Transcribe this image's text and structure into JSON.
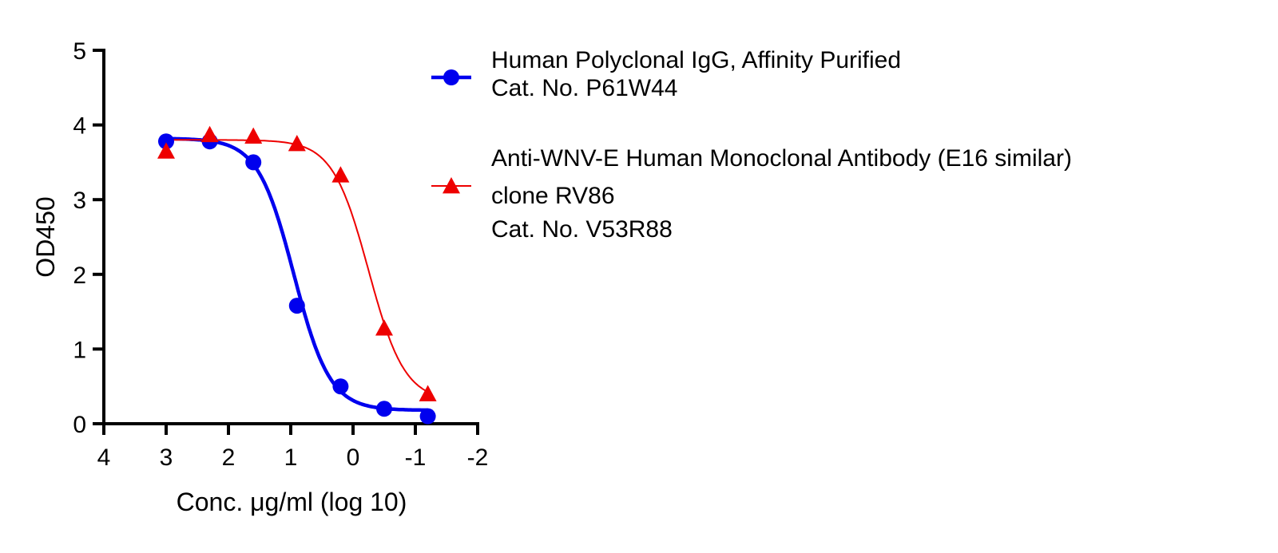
{
  "chart_data": {
    "type": "scatter",
    "title": "",
    "xlabel": "Conc. μg/ml (log 10)",
    "ylabel": "OD450",
    "xlim": [
      4,
      -2
    ],
    "ylim": [
      0,
      5
    ],
    "x_reversed": true,
    "xticks": [
      4,
      3,
      2,
      1,
      0,
      -1,
      -2
    ],
    "xtick_labels": [
      "4",
      "3",
      "2",
      "1",
      "0",
      "-1",
      "-2"
    ],
    "yticks": [
      0,
      1,
      2,
      3,
      4,
      5
    ],
    "ytick_labels": [
      "0",
      "1",
      "2",
      "3",
      "4",
      "5"
    ],
    "grid": false,
    "legend_position": "right",
    "series": [
      {
        "name": "Human Polyclonal IgG, Affinity Purified",
        "legend_lines": [
          "Human Polyclonal IgG, Affinity Purified",
          "Cat. No. P61W44"
        ],
        "color": "#0000ee",
        "marker": "circle",
        "x": [
          3.0,
          2.3,
          1.6,
          0.9,
          0.2,
          -0.5,
          -1.2
        ],
        "y": [
          3.78,
          3.78,
          3.5,
          1.58,
          0.5,
          0.2,
          0.1
        ],
        "fit": {
          "model": "4PL",
          "top": 3.82,
          "bottom": 0.18,
          "logEC50": 0.95,
          "hill": 1.5
        }
      },
      {
        "name": "Anti-WNV-E Human Monoclonal Antibody (E16 similar) clone RV86",
        "legend_lines": [
          "Anti-WNV-E Human Monoclonal Antibody (E16 similar)",
          "clone RV86",
          "Cat. No. V53R88"
        ],
        "color": "#ee0000",
        "marker": "triangle",
        "x": [
          3.0,
          2.3,
          1.6,
          0.9,
          0.2,
          -0.5,
          -1.2
        ],
        "y": [
          3.65,
          3.87,
          3.85,
          3.75,
          3.33,
          1.28,
          0.4
        ],
        "fit": {
          "model": "4PL",
          "top": 3.8,
          "bottom": 0.3,
          "logEC50": -0.25,
          "hill": 1.5
        }
      }
    ]
  }
}
